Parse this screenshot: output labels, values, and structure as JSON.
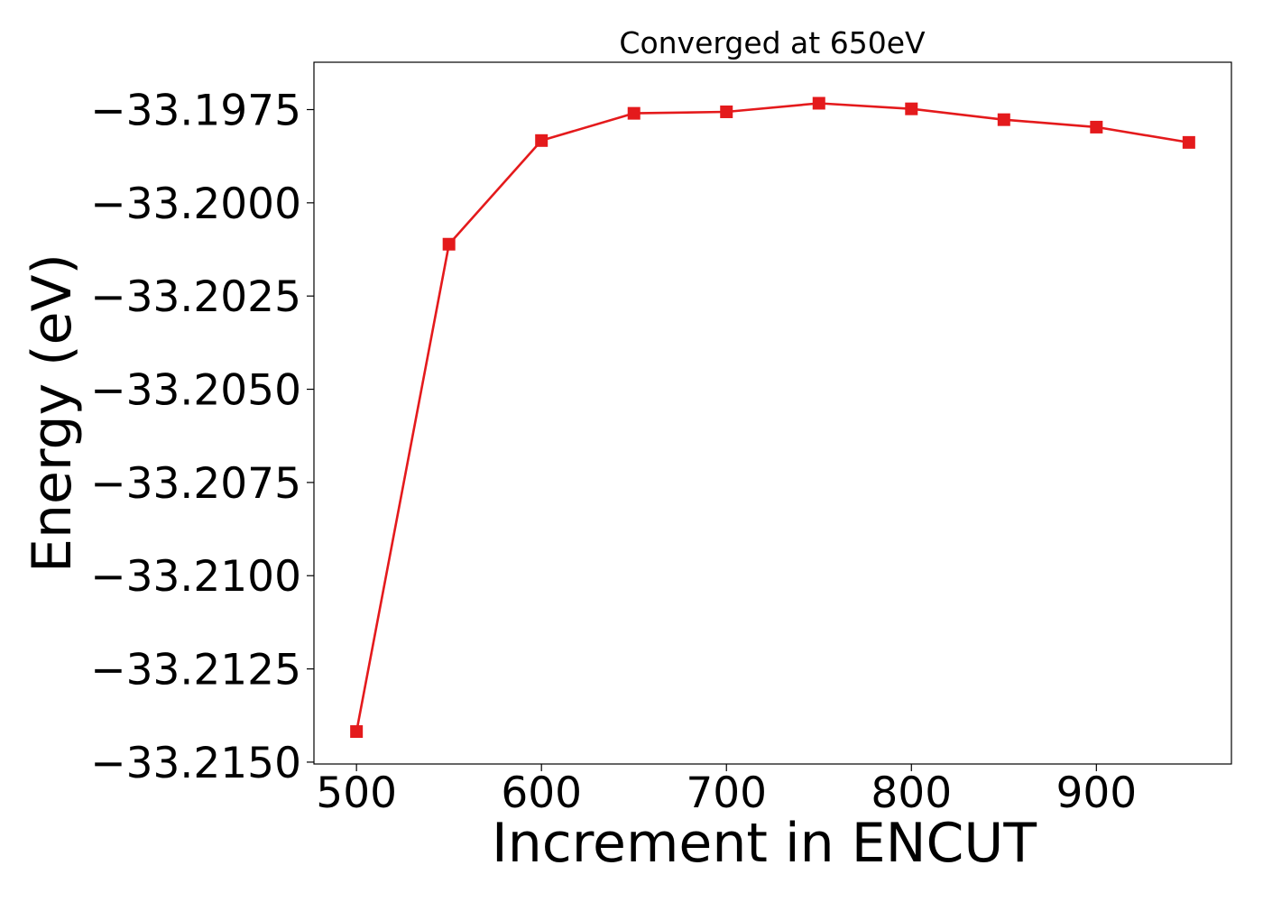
{
  "chart_data": {
    "type": "line",
    "title": "Converged at 650eV",
    "xlabel": "Increment in ENCUT",
    "ylabel": "Energy (eV)",
    "x": [
      500,
      550,
      600,
      650,
      700,
      750,
      800,
      850,
      900,
      950
    ],
    "xlim": [
      477,
      973
    ],
    "ylim": [
      -33.21505,
      -33.19623
    ],
    "grid": false,
    "x_ticks": [
      500,
      600,
      700,
      800,
      900
    ],
    "x_tick_labels": [
      "500",
      "600",
      "700",
      "800",
      "900"
    ],
    "y_ticks": [
      -33.1975,
      -33.2,
      -33.2025,
      -33.205,
      -33.2075,
      -33.21,
      -33.2125,
      -33.215
    ],
    "y_tick_labels": [
      "−33.1975",
      "−33.2000",
      "−33.2025",
      "−33.2050",
      "−33.2075",
      "−33.2100",
      "−33.2125",
      "−33.2150"
    ],
    "series": [
      {
        "values": [
          -33.21418,
          -33.20111,
          -33.19833,
          -33.1976,
          -33.19756,
          -33.19733,
          -33.19748,
          -33.19777,
          -33.19797,
          -33.19838
        ],
        "color": "#e41a1c",
        "marker": "square"
      }
    ]
  }
}
